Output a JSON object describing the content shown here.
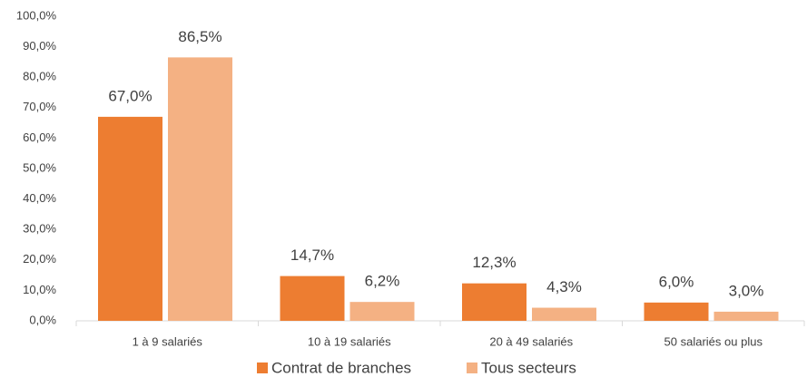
{
  "chart_data": {
    "type": "bar",
    "categories": [
      "1 à 9 salariés",
      "10 à 19 salariés",
      "20 à 49 salariés",
      "50 salariés ou plus"
    ],
    "series": [
      {
        "name": "Contrat de branches",
        "color": "#ed7d31",
        "values": [
          67.0,
          14.7,
          12.3,
          6.0
        ],
        "value_labels": [
          "67,0%",
          "14,7%",
          "12,3%",
          "6,0%"
        ]
      },
      {
        "name": "Tous secteurs",
        "color": "#f4b183",
        "values": [
          86.5,
          6.2,
          4.3,
          3.0
        ],
        "value_labels": [
          "86,5%",
          "6,2%",
          "4,3%",
          "3,0%"
        ]
      }
    ],
    "ylim": [
      0,
      100
    ],
    "yticks": [
      {
        "value": 0,
        "label": "0,0%"
      },
      {
        "value": 10,
        "label": "10,0%"
      },
      {
        "value": 20,
        "label": "20,0%"
      },
      {
        "value": 30,
        "label": "30,0%"
      },
      {
        "value": 40,
        "label": "40,0%"
      },
      {
        "value": 50,
        "label": "50,0%"
      },
      {
        "value": 60,
        "label": "60,0%"
      },
      {
        "value": 70,
        "label": "70,0%"
      },
      {
        "value": 80,
        "label": "80,0%"
      },
      {
        "value": 90,
        "label": "90,0%"
      },
      {
        "value": 100,
        "label": "100,0%"
      }
    ],
    "grid": false,
    "legend": "bottom"
  }
}
